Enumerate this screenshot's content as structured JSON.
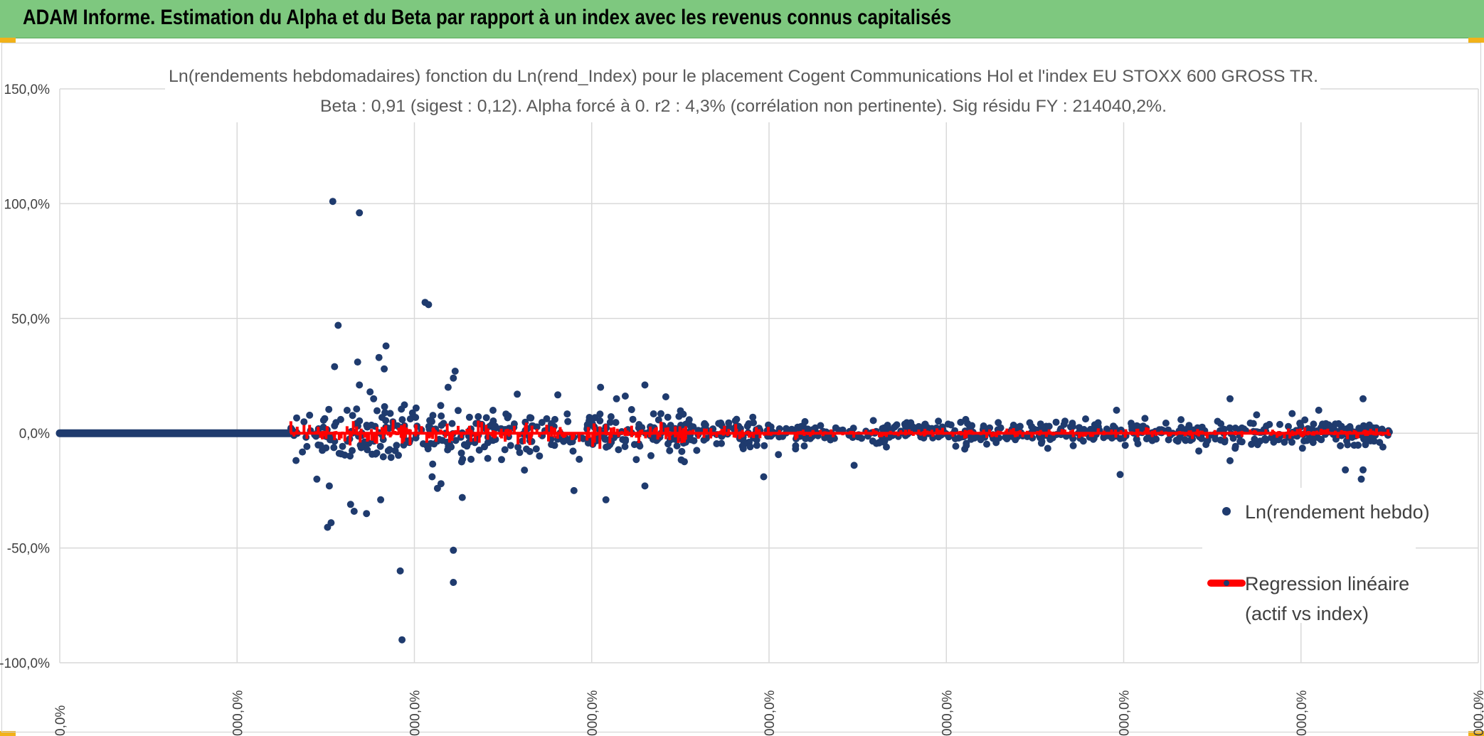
{
  "header": {
    "title": "ADAM Informe. Estimation du Alpha et du Beta par rapport à un index avec les revenus connus capitalisés"
  },
  "colors": {
    "header_bg": "#7ec87f",
    "points": "#1f3b6e",
    "regression": "#ff0000",
    "grid": "#d9d9d9"
  },
  "chart_data": {
    "type": "scatter",
    "title": "Ln(rendements hebdomadaires) fonction du Ln(rend_Index) pour le placement Cogent Communications Hol et l'index EU STOXX 600 GROSS TR.",
    "subtitle": "Beta : 0,91 (sigest : 0,12). Alpha forcé à 0. r2 : 4,3% (corrélation non pertinente). Sig résidu FY : 214040,2%.",
    "ylim": [
      -100,
      150
    ],
    "yticks": [
      "150,0%",
      "100,0%",
      "50,0%",
      "0,0%",
      "-50,0%",
      "-100,0%"
    ],
    "ytick_values": [
      150,
      100,
      50,
      0,
      -50,
      -100
    ],
    "xlim": [
      0,
      8
    ],
    "xticks": [
      "0,0%",
      "000,0%",
      "000,0%",
      "000,0%",
      "000,0%",
      "000,0%",
      "000,0%",
      "000,0%",
      "000,0%"
    ],
    "legend_position": "right",
    "series": [
      {
        "name": "Ln(rendement hebdo)",
        "marker": "dot",
        "flat_segment": {
          "x_start": 0,
          "x_end": 1.3,
          "y": 0
        },
        "noise_bands": [
          {
            "x_start": 1.3,
            "x_end": 2.1,
            "sigma": 6
          },
          {
            "x_start": 2.1,
            "x_end": 3.6,
            "sigma": 5
          },
          {
            "x_start": 3.6,
            "x_end": 4.0,
            "sigma": 3.5
          },
          {
            "x_start": 4.0,
            "x_end": 7.5,
            "sigma": 2.5
          }
        ],
        "outliers": [
          {
            "x": 1.54,
            "y": 101
          },
          {
            "x": 1.69,
            "y": 96
          },
          {
            "x": 1.57,
            "y": 47
          },
          {
            "x": 1.55,
            "y": 29
          },
          {
            "x": 1.68,
            "y": 31
          },
          {
            "x": 1.8,
            "y": 33
          },
          {
            "x": 1.84,
            "y": 38
          },
          {
            "x": 1.83,
            "y": 28
          },
          {
            "x": 1.69,
            "y": 21
          },
          {
            "x": 1.75,
            "y": 18
          },
          {
            "x": 1.77,
            "y": 15
          },
          {
            "x": 2.06,
            "y": 57
          },
          {
            "x": 2.08,
            "y": 56
          },
          {
            "x": 2.23,
            "y": 27
          },
          {
            "x": 2.22,
            "y": 24
          },
          {
            "x": 2.19,
            "y": 20
          },
          {
            "x": 1.53,
            "y": -39
          },
          {
            "x": 1.51,
            "y": -41
          },
          {
            "x": 1.64,
            "y": -31
          },
          {
            "x": 1.66,
            "y": -34
          },
          {
            "x": 1.73,
            "y": -35
          },
          {
            "x": 1.81,
            "y": -29
          },
          {
            "x": 1.45,
            "y": -20
          },
          {
            "x": 1.52,
            "y": -23
          },
          {
            "x": 1.92,
            "y": -60
          },
          {
            "x": 1.93,
            "y": -90
          },
          {
            "x": 2.22,
            "y": -51
          },
          {
            "x": 2.22,
            "y": -65
          },
          {
            "x": 2.27,
            "y": -28
          },
          {
            "x": 2.1,
            "y": -19
          },
          {
            "x": 2.13,
            "y": -24
          },
          {
            "x": 2.15,
            "y": -22
          },
          {
            "x": 2.9,
            "y": -25
          },
          {
            "x": 3.08,
            "y": -29
          },
          {
            "x": 3.05,
            "y": 20
          },
          {
            "x": 3.3,
            "y": 21
          },
          {
            "x": 2.58,
            "y": 17
          },
          {
            "x": 3.14,
            "y": 15
          },
          {
            "x": 3.3,
            "y": -23
          },
          {
            "x": 3.97,
            "y": -19
          },
          {
            "x": 4.48,
            "y": -14
          },
          {
            "x": 5.98,
            "y": -18
          },
          {
            "x": 5.96,
            "y": 10
          },
          {
            "x": 6.6,
            "y": 15
          },
          {
            "x": 7.35,
            "y": 15
          },
          {
            "x": 7.34,
            "y": -20
          },
          {
            "x": 7.35,
            "y": -16
          },
          {
            "x": 7.25,
            "y": -16
          },
          {
            "x": 6.6,
            "y": -12
          },
          {
            "x": 6.75,
            "y": 8
          },
          {
            "x": 7.1,
            "y": 10
          }
        ]
      },
      {
        "name": "Regression linéaire (actif vs index)",
        "name_line1": "Regression linéaire",
        "name_line2": "(actif vs index)",
        "marker": "line",
        "beta": 0.91,
        "x_start": 1.3,
        "x_end": 7.5
      }
    ]
  }
}
